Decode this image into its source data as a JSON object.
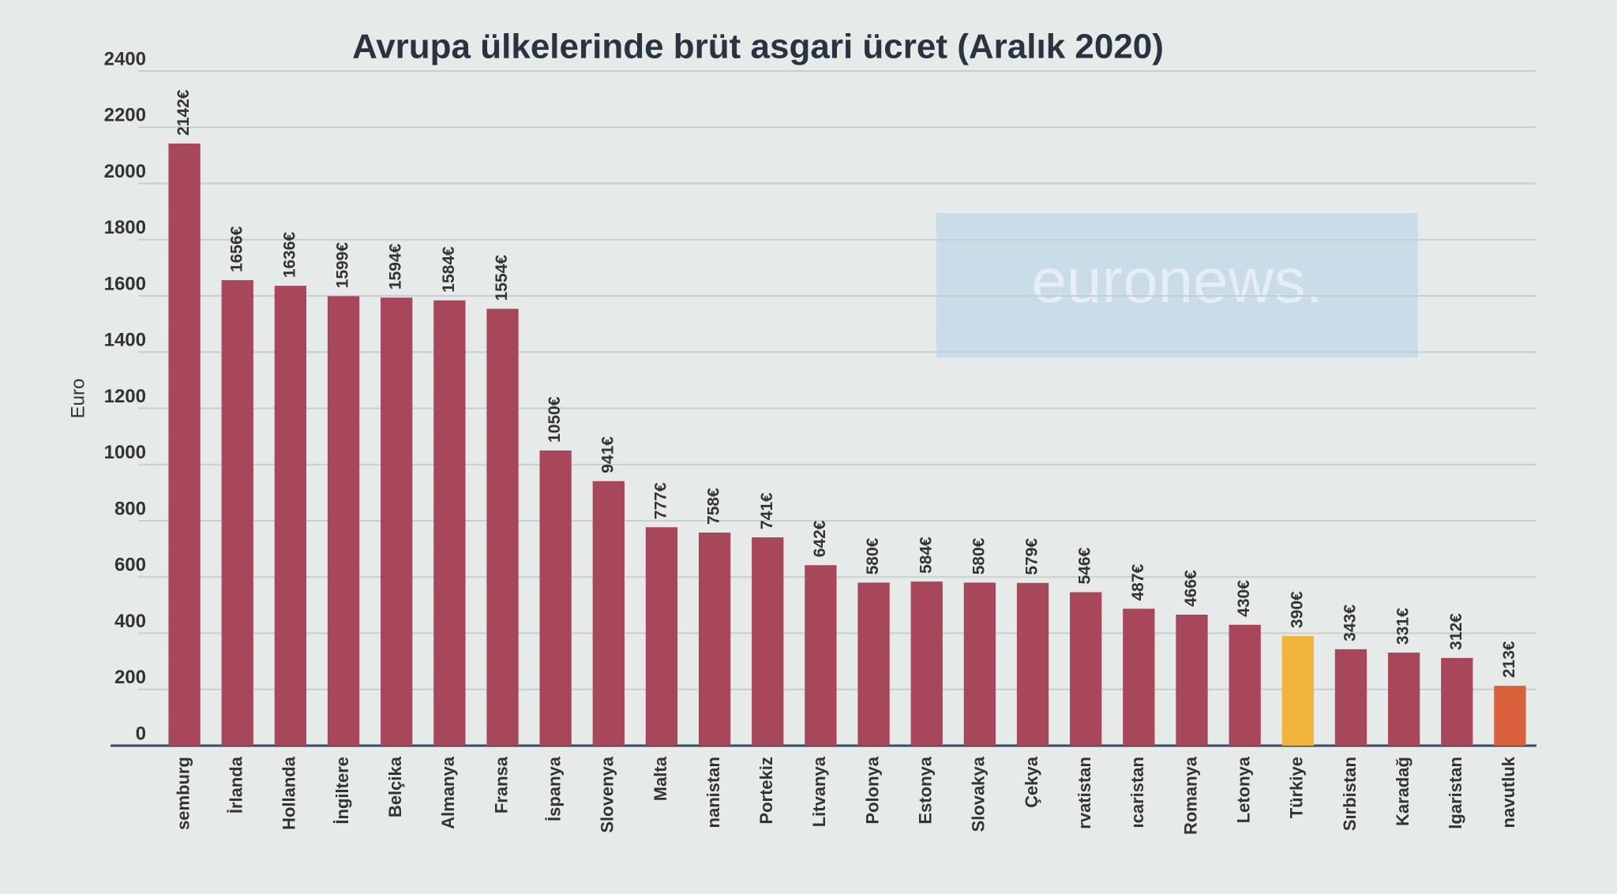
{
  "chart_data": {
    "type": "bar",
    "title": "Avrupa ülkelerinde brüt asgari ücret  (Aralık 2020)",
    "y_label": "Euro",
    "watermark": "euronews.",
    "categories": [
      "semburg",
      "İrlanda",
      "Hollanda",
      "İngiltere",
      "Belçika",
      "Almanya",
      "Fransa",
      "İspanya",
      "Slovenya",
      "Malta",
      "nanistan",
      "Portekiz",
      "Litvanya",
      "Polonya",
      "Estonya",
      "Slovakya",
      "Çekya",
      "rvatistan",
      "ıcaristan",
      "Romanya",
      "Letonya",
      "Türkiye",
      "Sırbistan",
      "Karadağ",
      "lgaristan",
      "navutluk"
    ],
    "values": [
      2142,
      1656,
      1636,
      1599,
      1594,
      1584,
      1554,
      1050,
      941,
      777,
      758,
      741,
      642,
      580,
      584,
      580,
      579,
      546,
      487,
      466,
      430,
      390,
      343,
      331,
      312,
      213
    ],
    "value_labels": [
      "2142€",
      "1656€",
      "1636€",
      "1599€",
      "1594€",
      "1584€",
      "1554€",
      "1050€",
      "941€",
      "777€",
      "758€",
      "741€",
      "642€",
      "580€",
      "584€",
      "580€",
      "579€",
      "546€",
      "487€",
      "466€",
      "430€",
      "390€",
      "343€",
      "331€",
      "312€",
      "213€"
    ],
    "colors": [
      "#a8475a",
      "#a8475a",
      "#a8475a",
      "#a8475a",
      "#a8475a",
      "#a8475a",
      "#a8475a",
      "#a8475a",
      "#a8475a",
      "#a8475a",
      "#a8475a",
      "#a8475a",
      "#a8475a",
      "#a8475a",
      "#a8475a",
      "#a8475a",
      "#a8475a",
      "#a8475a",
      "#a8475a",
      "#a8475a",
      "#a8475a",
      "#f0b43c",
      "#a8475a",
      "#a8475a",
      "#a8475a",
      "#d9603a"
    ],
    "ylim": [
      0,
      2400
    ],
    "yticks": [
      0,
      200,
      400,
      600,
      800,
      1000,
      1200,
      1400,
      1600,
      1800,
      2000,
      2200,
      2400
    ],
    "grid": true
  }
}
